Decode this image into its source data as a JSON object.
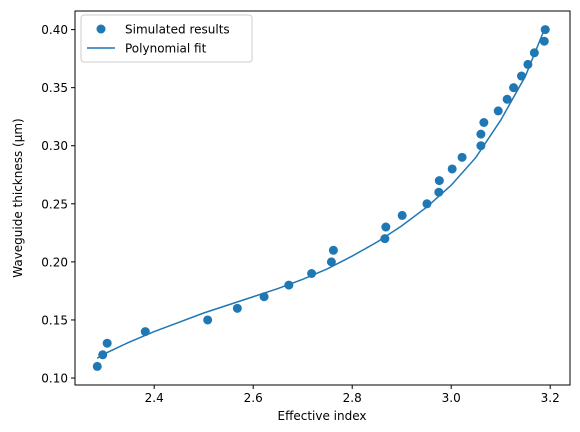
{
  "chart_data": {
    "type": "scatter",
    "title": "",
    "xlabel": "Effective index",
    "ylabel": "Waveguide thickness (μm)",
    "xlim": [
      2.24,
      3.24
    ],
    "ylim": [
      0.094,
      0.416
    ],
    "xticks": [
      2.4,
      2.6,
      2.8,
      3.0,
      3.2
    ],
    "xtick_labels": [
      "2.4",
      "2.6",
      "2.8",
      "3.0",
      "3.2"
    ],
    "yticks": [
      0.1,
      0.15,
      0.2,
      0.25,
      0.3,
      0.35,
      0.4
    ],
    "ytick_labels": [
      "0.10",
      "0.15",
      "0.20",
      "0.25",
      "0.30",
      "0.35",
      "0.40"
    ],
    "grid": false,
    "legend": {
      "position": "top-left",
      "entries": [
        {
          "label": "Simulated results",
          "kind": "marker"
        },
        {
          "label": "Polynomial fit",
          "kind": "line"
        }
      ]
    },
    "color": "#1f77b4",
    "series": [
      {
        "name": "Simulated results",
        "kind": "scatter",
        "points": [
          [
            2.285,
            0.11
          ],
          [
            2.296,
            0.12
          ],
          [
            2.305,
            0.13
          ],
          [
            2.382,
            0.14
          ],
          [
            2.508,
            0.15
          ],
          [
            2.568,
            0.16
          ],
          [
            2.622,
            0.17
          ],
          [
            2.672,
            0.18
          ],
          [
            2.718,
            0.19
          ],
          [
            2.758,
            0.2
          ],
          [
            2.762,
            0.21
          ],
          [
            2.866,
            0.22
          ],
          [
            2.868,
            0.23
          ],
          [
            2.901,
            0.24
          ],
          [
            2.951,
            0.25
          ],
          [
            2.975,
            0.26
          ],
          [
            2.976,
            0.27
          ],
          [
            3.002,
            0.28
          ],
          [
            3.022,
            0.29
          ],
          [
            3.06,
            0.3
          ],
          [
            3.06,
            0.31
          ],
          [
            3.066,
            0.32
          ],
          [
            3.095,
            0.33
          ],
          [
            3.113,
            0.34
          ],
          [
            3.126,
            0.35
          ],
          [
            3.142,
            0.36
          ],
          [
            3.155,
            0.37
          ],
          [
            3.168,
            0.38
          ],
          [
            3.188,
            0.39
          ],
          [
            3.19,
            0.4
          ]
        ]
      },
      {
        "name": "Polynomial fit",
        "kind": "line",
        "points": [
          [
            2.285,
            0.117
          ],
          [
            2.3,
            0.121
          ],
          [
            2.35,
            0.131
          ],
          [
            2.4,
            0.14
          ],
          [
            2.45,
            0.148
          ],
          [
            2.5,
            0.156
          ],
          [
            2.55,
            0.163
          ],
          [
            2.6,
            0.17
          ],
          [
            2.65,
            0.177
          ],
          [
            2.7,
            0.185
          ],
          [
            2.75,
            0.194
          ],
          [
            2.8,
            0.205
          ],
          [
            2.85,
            0.217
          ],
          [
            2.9,
            0.231
          ],
          [
            2.95,
            0.247
          ],
          [
            3.0,
            0.266
          ],
          [
            3.05,
            0.29
          ],
          [
            3.1,
            0.322
          ],
          [
            3.15,
            0.36
          ],
          [
            3.19,
            0.402
          ]
        ]
      }
    ]
  }
}
